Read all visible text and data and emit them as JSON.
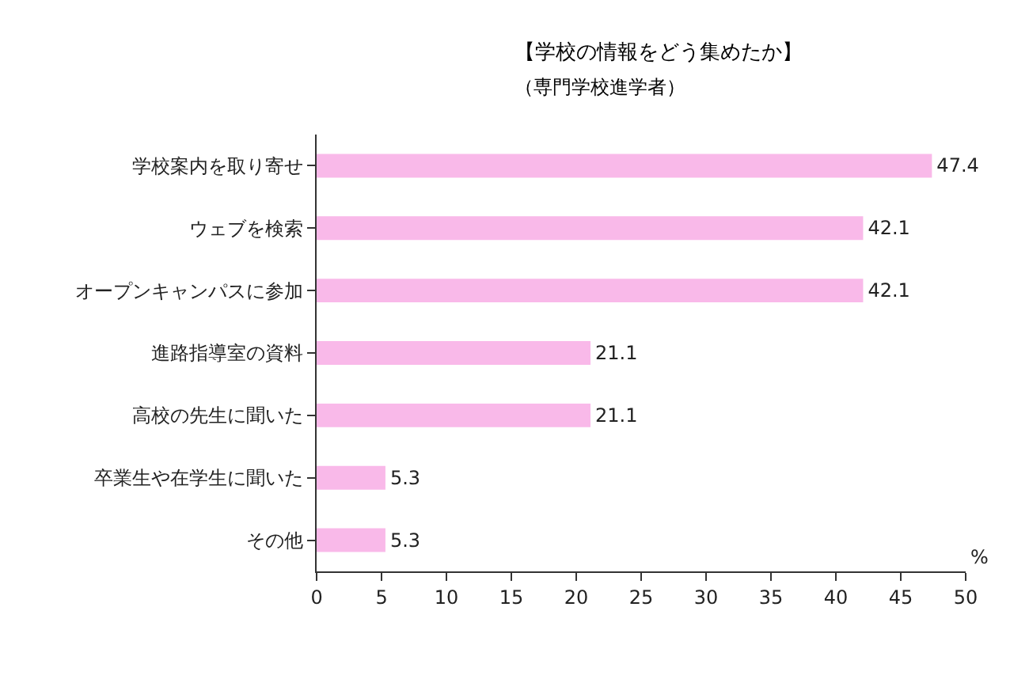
{
  "chart_data": {
    "type": "bar",
    "orientation": "horizontal",
    "title": "【学校の情報をどう集めたか】",
    "subtitle": "（専門学校進学者）",
    "xlabel": "%",
    "categories": [
      "学校案内を取り寄せ",
      "ウェブを検索",
      "オープンキャンパスに参加",
      "進路指導室の資料",
      "高校の先生に聞いた",
      "卒業生や在学生に聞いた",
      "その他"
    ],
    "values": [
      47.4,
      42.1,
      42.1,
      21.1,
      21.1,
      5.3,
      5.3
    ],
    "color": "#f9b9e9",
    "data_labels": true,
    "xlim": [
      0,
      50
    ],
    "xticks": [
      0,
      5,
      10,
      15,
      20,
      25,
      30,
      35,
      40,
      45,
      50
    ],
    "legend": false
  }
}
